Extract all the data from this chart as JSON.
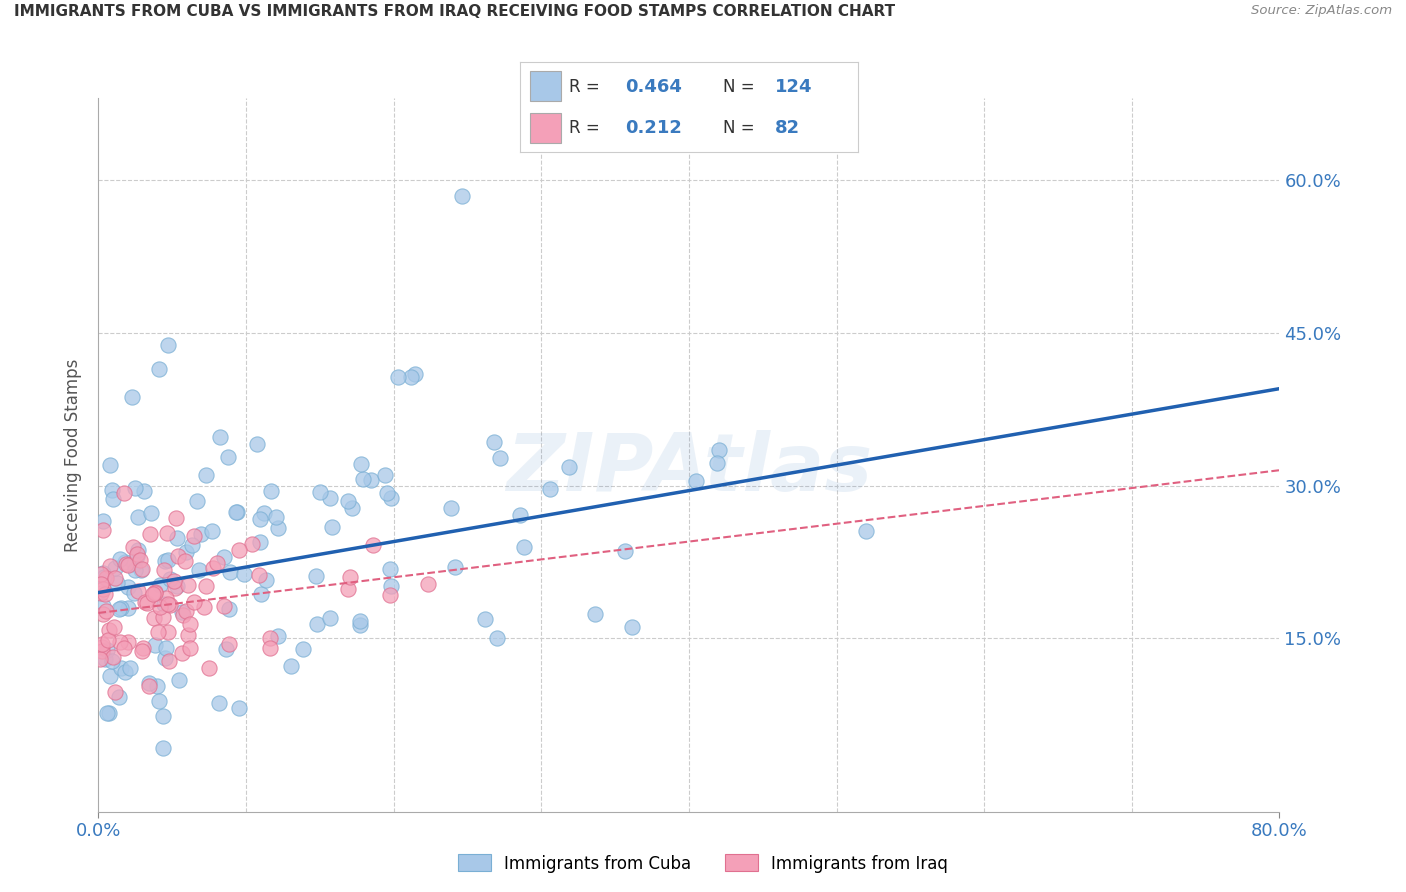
{
  "title": "IMMIGRANTS FROM CUBA VS IMMIGRANTS FROM IRAQ RECEIVING FOOD STAMPS CORRELATION CHART",
  "source": "Source: ZipAtlas.com",
  "ylabel": "Receiving Food Stamps",
  "xlim": [
    0.0,
    0.8
  ],
  "ylim": [
    -0.02,
    0.68
  ],
  "yticks": [
    0.15,
    0.3,
    0.45,
    0.6
  ],
  "ytick_labels": [
    "15.0%",
    "30.0%",
    "45.0%",
    "60.0%"
  ],
  "cuba_R": 0.464,
  "cuba_N": 124,
  "iraq_R": 0.212,
  "iraq_N": 82,
  "cuba_color": "#a8c8e8",
  "cuba_edge_color": "#7aafd4",
  "iraq_color": "#f4a0b8",
  "iraq_edge_color": "#e07090",
  "cuba_line_color": "#2060b0",
  "iraq_line_color": "#e06080",
  "watermark_color": "#3a7abf",
  "background_color": "#ffffff",
  "title_color": "#333333",
  "axis_color": "#3a7abf",
  "grid_color": "#cccccc",
  "cuba_line_start_y": 0.195,
  "cuba_line_end_y": 0.395,
  "iraq_line_start_y": 0.175,
  "iraq_line_end_y": 0.315
}
